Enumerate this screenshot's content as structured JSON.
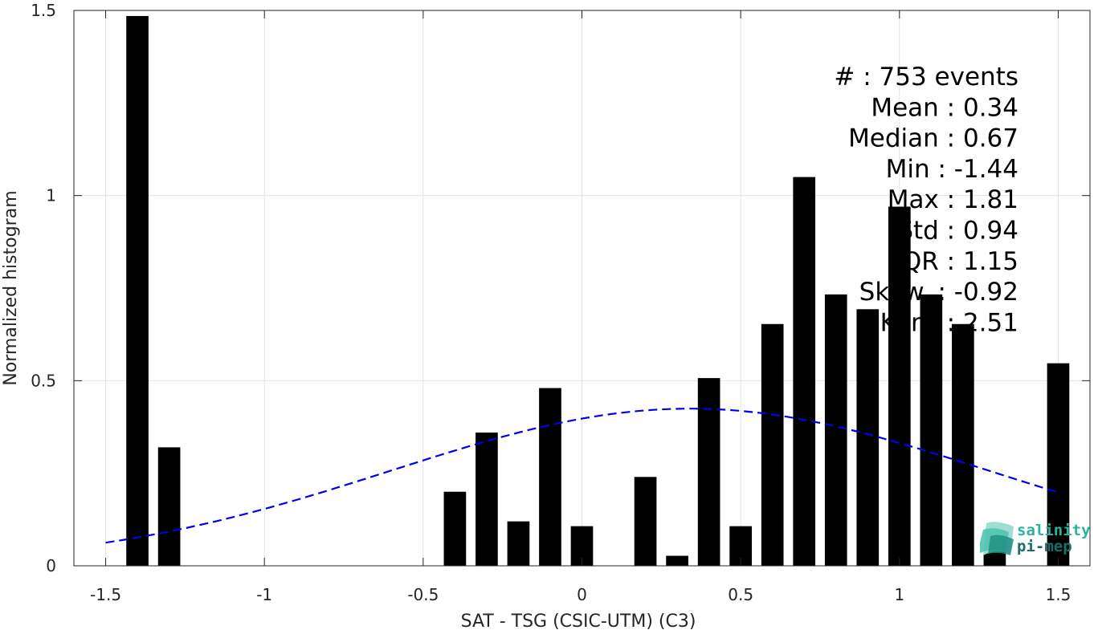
{
  "chart_data": {
    "type": "bar",
    "xlabel": "SAT - TSG (CSIC-UTM) (C3)",
    "ylabel": "Normalized histogram",
    "xlim": [
      -1.6,
      1.6
    ],
    "ylim": [
      0,
      1.5
    ],
    "xticks": [
      "-1.5",
      "-1",
      "-0.5",
      "0",
      "0.5",
      "1",
      "1.5"
    ],
    "yticks": [
      "0",
      "0.5",
      "1",
      "1.5"
    ],
    "grid": true,
    "bar_color": "#000000",
    "bin_width": 0.1,
    "x": [
      -1.4,
      -1.3,
      -1.2,
      -1.1,
      -1.0,
      -0.9,
      -0.8,
      -0.7,
      -0.6,
      -0.5,
      -0.4,
      -0.3,
      -0.2,
      -0.1,
      0.0,
      0.1,
      0.2,
      0.3,
      0.4,
      0.5,
      0.6,
      0.7,
      0.8,
      0.9,
      1.0,
      1.1,
      1.2,
      1.3,
      1.4,
      1.5
    ],
    "values": [
      1.485,
      0.32,
      0,
      0,
      0,
      0,
      0,
      0,
      0,
      0,
      0.2,
      0.36,
      0.12,
      0.48,
      0.107,
      0,
      0.24,
      0.027,
      0.507,
      0.107,
      0.653,
      1.05,
      0.733,
      0.693,
      0.97,
      0.733,
      0.653,
      0.04,
      0,
      0.547
    ],
    "fit_curve": {
      "style": "dashed",
      "color": "#0000ee",
      "mean": 0.34,
      "std": 0.94,
      "x_range": [
        -1.5,
        1.5
      ]
    },
    "annotations": [
      {
        "label": "#  ",
        "value": ": 753 events"
      },
      {
        "label": "Mean ",
        "value": ": 0.34"
      },
      {
        "label": "Median ",
        "value": ": 0.67"
      },
      {
        "label": "Min ",
        "value": ": -1.44"
      },
      {
        "label": "Max ",
        "value": ": 1.81"
      },
      {
        "label": "Std ",
        "value": ": 0.94"
      },
      {
        "label": "IQR ",
        "value": ": 1.15"
      },
      {
        "label": "Skew. ",
        "value": ": -0.92"
      },
      {
        "label": "Kurt. ",
        "value": ": 2.51"
      }
    ]
  },
  "logo": {
    "line1": "salinity",
    "line2": "pi-mep",
    "color1": "#2bb3a0",
    "color2": "#1a6e66"
  }
}
